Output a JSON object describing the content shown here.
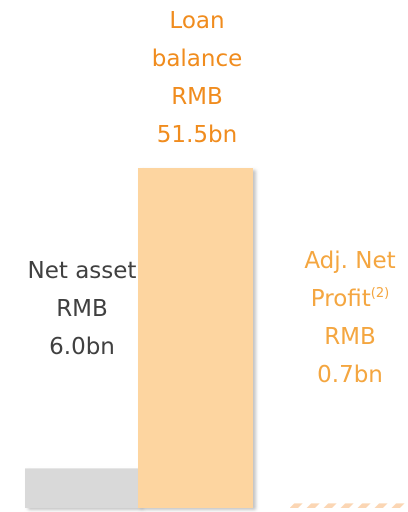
{
  "chart_data": {
    "type": "bar",
    "categories": [
      "Net asset",
      "Loan balance",
      "Adj. Net Profit"
    ],
    "notes": [
      null,
      null,
      "(2)"
    ],
    "values": [
      6.0,
      51.5,
      0.7
    ],
    "value_labels": [
      "RMB 6.0bn",
      "RMB 51.5bn",
      "RMB 0.7bn"
    ],
    "colors": [
      "#d9d9d9",
      "#fdd5a0",
      "#fbd6b4"
    ],
    "hatched": [
      false,
      false,
      true
    ],
    "label_colors": [
      "#404040",
      "#f08c1e",
      "#f4a640"
    ]
  }
}
